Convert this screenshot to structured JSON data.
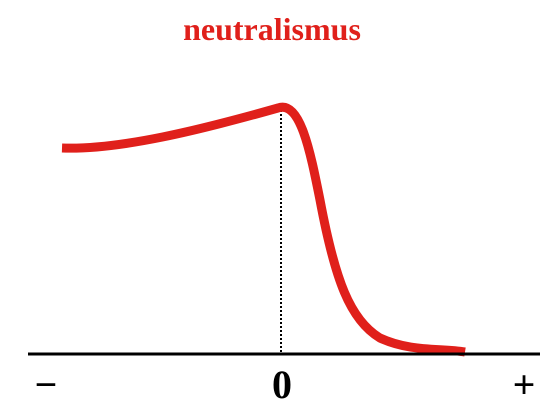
{
  "title": "neutralismus",
  "axis": {
    "minus": "−",
    "zero": "0",
    "plus": "+"
  }
}
